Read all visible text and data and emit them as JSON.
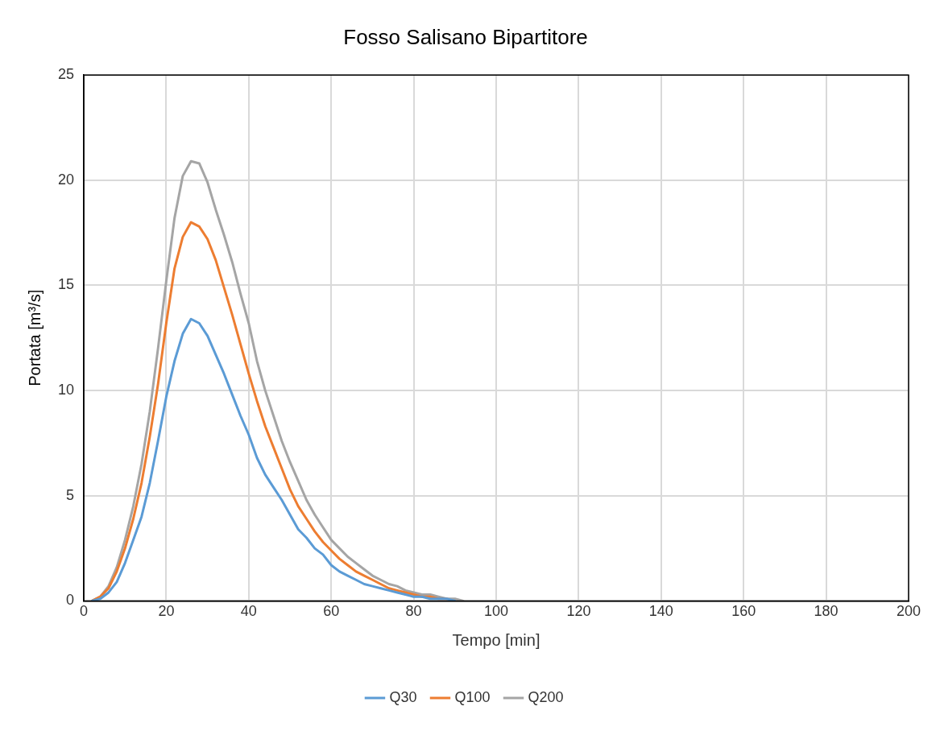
{
  "chart_data": {
    "type": "line",
    "title": "Fosso Salisano Bipartitore",
    "xlabel": "Tempo [min]",
    "ylabel": "Portata [m³/s]",
    "x": [
      2,
      4,
      6,
      8,
      10,
      12,
      14,
      16,
      18,
      20,
      22,
      24,
      26,
      28,
      30,
      32,
      34,
      36,
      38,
      40,
      42,
      44,
      46,
      48,
      50,
      52,
      54,
      56,
      58,
      60,
      62,
      64,
      66,
      68,
      70,
      72,
      74,
      76,
      78,
      80,
      82,
      84,
      86,
      88,
      90,
      92
    ],
    "series": [
      {
        "name": "Q30",
        "color": "#5b9bd5",
        "values": [
          0,
          0.1,
          0.4,
          0.9,
          1.8,
          2.9,
          4.0,
          5.6,
          7.6,
          9.7,
          11.4,
          12.7,
          13.4,
          13.2,
          12.6,
          11.7,
          10.8,
          9.8,
          8.8,
          7.9,
          6.8,
          6.0,
          5.4,
          4.8,
          4.1,
          3.4,
          3.0,
          2.5,
          2.2,
          1.7,
          1.4,
          1.2,
          1.0,
          0.8,
          0.7,
          0.6,
          0.5,
          0.4,
          0.3,
          0.2,
          0.2,
          0.1,
          0.1,
          0.1,
          0,
          null
        ]
      },
      {
        "name": "Q100",
        "color": "#ed7d31",
        "values": [
          0,
          0.2,
          0.6,
          1.4,
          2.5,
          3.9,
          5.6,
          7.8,
          10.3,
          13.2,
          15.8,
          17.3,
          18.0,
          17.8,
          17.2,
          16.2,
          14.9,
          13.6,
          12.2,
          10.8,
          9.5,
          8.3,
          7.3,
          6.3,
          5.3,
          4.5,
          3.9,
          3.3,
          2.8,
          2.4,
          2.0,
          1.7,
          1.4,
          1.2,
          1.0,
          0.8,
          0.6,
          0.5,
          0.4,
          0.3,
          0.2,
          0.2,
          0.1,
          0.1,
          null,
          null
        ]
      },
      {
        "name": "Q200",
        "color": "#a5a5a5",
        "values": [
          0,
          0.2,
          0.7,
          1.6,
          2.9,
          4.5,
          6.5,
          9.0,
          12.0,
          15.2,
          18.2,
          20.2,
          20.9,
          20.8,
          19.9,
          18.6,
          17.4,
          16.1,
          14.6,
          13.2,
          11.4,
          10.0,
          8.8,
          7.6,
          6.6,
          5.7,
          4.8,
          4.1,
          3.5,
          2.9,
          2.5,
          2.1,
          1.8,
          1.5,
          1.2,
          1.0,
          0.8,
          0.7,
          0.5,
          0.4,
          0.3,
          0.3,
          0.2,
          0.1,
          0.1,
          0
        ]
      }
    ],
    "xlim": [
      0,
      200
    ],
    "xticks": [
      0,
      20,
      40,
      60,
      80,
      100,
      120,
      140,
      160,
      180,
      200
    ],
    "ylim": [
      0,
      25
    ],
    "yticks": [
      0,
      5,
      10,
      15,
      20,
      25
    ],
    "grid": true,
    "legend": "bottom",
    "marker": "none",
    "line_style": "solid"
  }
}
